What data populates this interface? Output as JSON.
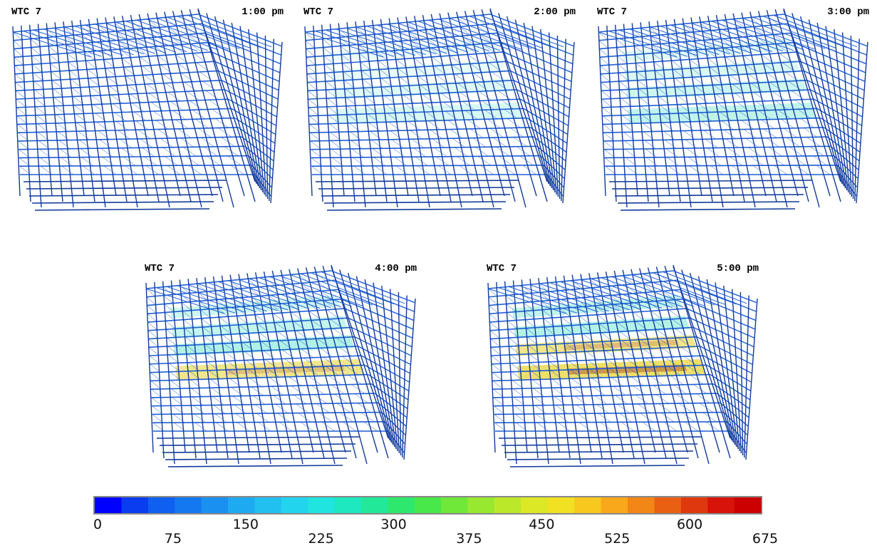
{
  "panels": [
    {
      "title": "WTC 7",
      "time": "1:00 pm",
      "heat": 0.1
    },
    {
      "title": "WTC 7",
      "time": "2:00 pm",
      "heat": 0.25
    },
    {
      "title": "WTC 7",
      "time": "3:00 pm",
      "heat": 0.4
    },
    {
      "title": "WTC 7",
      "time": "4:00 pm",
      "heat": 0.62
    },
    {
      "title": "WTC 7",
      "time": "5:00 pm",
      "heat": 0.8
    }
  ],
  "colorbar": {
    "min": 0,
    "max": 675,
    "ticks_upper": [
      0,
      150,
      300,
      450,
      600
    ],
    "ticks_lower": [
      75,
      225,
      375,
      525,
      675
    ],
    "colors": [
      "#0000ff",
      "#0a3cf0",
      "#0f5ff0",
      "#1478f0",
      "#1a90f0",
      "#1eaaf0",
      "#21c0f0",
      "#22d4ee",
      "#20e4e0",
      "#1ee8c0",
      "#22e89a",
      "#2ee86e",
      "#48e84a",
      "#70e83a",
      "#98e830",
      "#bce82a",
      "#dce826",
      "#f2e022",
      "#f8c81e",
      "#f8a81a",
      "#f28616",
      "#ea6012",
      "#e0380e",
      "#d8140a",
      "#cc0000"
    ]
  },
  "structure_colors": {
    "base": "#1f5fd6",
    "dark": "#123a9a",
    "hot_mid": "#4fe0c8",
    "hot_high": "#e8d230",
    "hot_max": "#8a1010"
  }
}
